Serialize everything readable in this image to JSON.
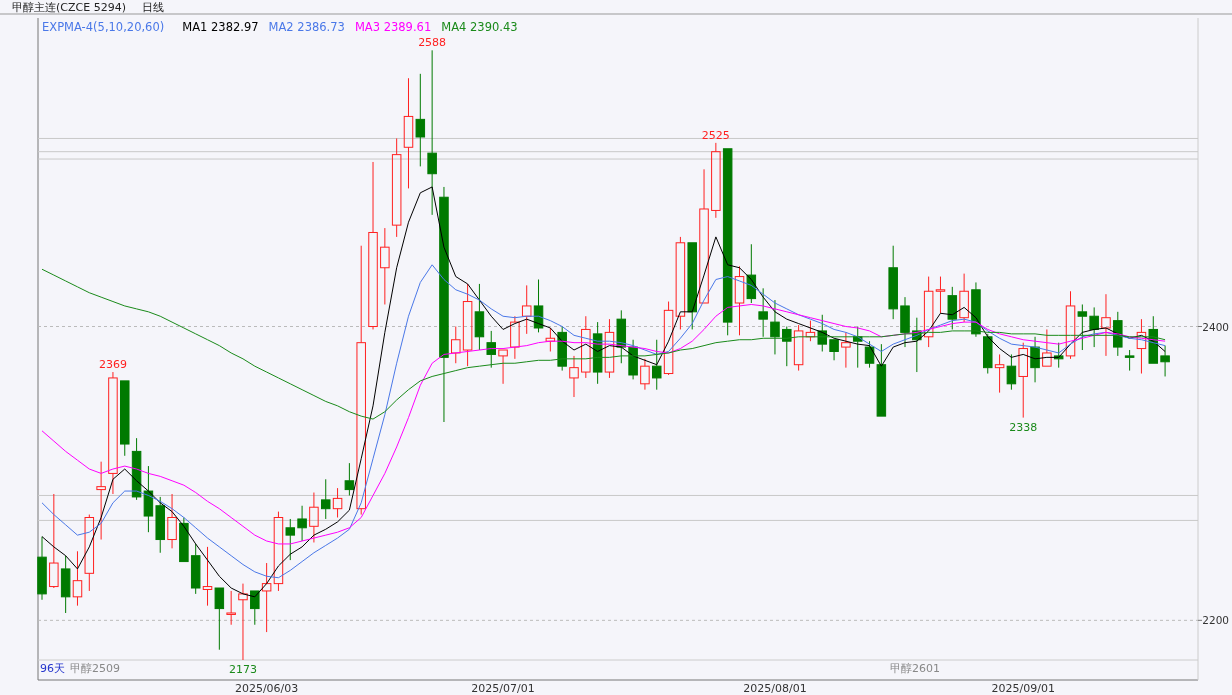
{
  "chart_data": {
    "type": "candlestick",
    "title": "甲醇主连(CZCE 5294)",
    "subtitle": "日线",
    "legend_title": "EXPMA-4(5,10,20,60)",
    "legend": "top left",
    "grid": "y",
    "ylim": [
      2173,
      2610
    ],
    "yticks": [
      2200,
      2400
    ],
    "categories": [
      null,
      null,
      null,
      null,
      null,
      null,
      null,
      null,
      null,
      null,
      null,
      null,
      null,
      null,
      null,
      null,
      null,
      null,
      null,
      "2025/06/03",
      null,
      null,
      null,
      null,
      null,
      null,
      null,
      null,
      null,
      null,
      null,
      null,
      null,
      null,
      null,
      null,
      null,
      null,
      null,
      "2025/07/01",
      null,
      null,
      null,
      null,
      null,
      null,
      null,
      null,
      null,
      null,
      null,
      null,
      null,
      null,
      null,
      null,
      null,
      null,
      null,
      null,
      null,
      null,
      "2025/08/01",
      null,
      null,
      null,
      null,
      null,
      null,
      null,
      null,
      null,
      null,
      null,
      null,
      null,
      null,
      null,
      null,
      null,
      null,
      null,
      null,
      "2025/09/01",
      null,
      null,
      null,
      null,
      null,
      null,
      null,
      null,
      null,
      null,
      null,
      null
    ],
    "series": [
      {
        "type": "line",
        "name": "MA1 2382.97",
        "color": "#000000",
        "values": [
          2257,
          2250,
          2244,
          2235,
          2250,
          2270,
          2296,
          2303,
          2295,
          2288,
          2280,
          2274,
          2264,
          2252,
          2241,
          2230,
          2222,
          2218,
          2216,
          2225,
          2237,
          2245,
          2250,
          2258,
          2262,
          2267,
          2275,
          2310,
          2346,
          2396,
          2440,
          2471,
          2491,
          2495,
          2454,
          2434,
          2429,
          2418,
          2407,
          2398,
          2402,
          2405,
          2402,
          2399,
          2390,
          2384,
          2388,
          2383,
          2387,
          2386,
          2380,
          2377,
          2374,
          2390,
          2410,
          2410,
          2435,
          2461,
          2442,
          2440,
          2432,
          2420,
          2410,
          2405,
          2402,
          2399,
          2396,
          2392,
          2390,
          2388,
          2387,
          2373,
          2386,
          2389,
          2390,
          2397,
          2409,
          2408,
          2413,
          2406,
          2393,
          2385,
          2379,
          2381,
          2378,
          2379,
          2379,
          2388,
          2396,
          2398,
          2399,
          2395,
          2392,
          2394,
          2390,
          2383
        ]
      },
      {
        "type": "line",
        "name": "MA2 2386.73",
        "color": "#4a78e8",
        "values": [
          2280,
          2272,
          2265,
          2258,
          2260,
          2266,
          2280,
          2288,
          2288,
          2285,
          2281,
          2276,
          2270,
          2263,
          2256,
          2250,
          2244,
          2238,
          2233,
          2230,
          2229,
          2234,
          2240,
          2246,
          2251,
          2256,
          2262,
          2280,
          2310,
          2340,
          2375,
          2407,
          2430,
          2442,
          2432,
          2425,
          2422,
          2418,
          2412,
          2407,
          2406,
          2407,
          2407,
          2404,
          2400,
          2394,
          2392,
          2390,
          2390,
          2389,
          2387,
          2384,
          2381,
          2383,
          2392,
          2402,
          2418,
          2432,
          2434,
          2431,
          2428,
          2422,
          2416,
          2412,
          2408,
          2405,
          2402,
          2398,
          2396,
          2393,
          2388,
          2383,
          2388,
          2391,
          2394,
          2398,
          2401,
          2404,
          2405,
          2403,
          2397,
          2392,
          2388,
          2387,
          2386,
          2384,
          2382,
          2388,
          2393,
          2395,
          2396,
          2394,
          2392,
          2391,
          2389,
          2387
        ]
      },
      {
        "type": "line",
        "name": "MA3 2389.61",
        "color": "#ff00ff",
        "values": [
          2329,
          2322,
          2315,
          2309,
          2303,
          2300,
          2303,
          2305,
          2303,
          2300,
          2298,
          2295,
          2292,
          2287,
          2281,
          2276,
          2270,
          2264,
          2258,
          2254,
          2252,
          2252,
          2254,
          2256,
          2258,
          2260,
          2263,
          2270,
          2285,
          2300,
          2318,
          2338,
          2360,
          2375,
          2381,
          2382,
          2383,
          2384,
          2385,
          2385,
          2386,
          2387,
          2389,
          2390,
          2390,
          2389,
          2389,
          2388,
          2388,
          2387,
          2386,
          2385,
          2383,
          2382,
          2385,
          2390,
          2398,
          2407,
          2413,
          2414,
          2415,
          2414,
          2412,
          2410,
          2408,
          2406,
          2404,
          2402,
          2400,
          2399,
          2397,
          2393,
          2394,
          2395,
          2396,
          2398,
          2400,
          2402,
          2403,
          2403,
          2398,
          2395,
          2393,
          2391,
          2390,
          2389,
          2388,
          2390,
          2392,
          2394,
          2396,
          2395,
          2393,
          2392,
          2391,
          2390
        ]
      },
      {
        "type": "line",
        "name": "MA4 2390.43",
        "color": "#1a8a1a",
        "values": [
          2439,
          2435,
          2431,
          2427,
          2423,
          2420,
          2417,
          2414,
          2412,
          2410,
          2407,
          2403,
          2399,
          2395,
          2391,
          2387,
          2382,
          2378,
          2373,
          2369,
          2365,
          2361,
          2357,
          2353,
          2349,
          2346,
          2342,
          2339,
          2337,
          2342,
          2350,
          2357,
          2363,
          2366,
          2368,
          2370,
          2372,
          2373,
          2374,
          2375,
          2375,
          2376,
          2377,
          2377,
          2378,
          2378,
          2378,
          2379,
          2379,
          2380,
          2380,
          2380,
          2381,
          2382,
          2384,
          2385,
          2387,
          2389,
          2390,
          2391,
          2391,
          2392,
          2392,
          2392,
          2393,
          2393,
          2393,
          2393,
          2393,
          2393,
          2393,
          2393,
          2394,
          2395,
          2395,
          2396,
          2396,
          2397,
          2397,
          2397,
          2396,
          2396,
          2395,
          2395,
          2395,
          2394,
          2394,
          2394,
          2394,
          2394,
          2394,
          2394,
          2393,
          2393,
          2393,
          2391
        ]
      },
      {
        "colors": [
          "#007a00",
          "#ff2020",
          "#007a00",
          "#ff2020",
          "#ff2020",
          "#ff2020",
          "#ff2020",
          "#007a00",
          "#007a00",
          "#007a00",
          "#007a00",
          "#ff2020",
          "#007a00",
          "#007a00",
          "#ff2020",
          "#007a00",
          "#ff2020",
          "#ff2020",
          "#007a00",
          "#ff2020",
          "#ff2020",
          "#007a00",
          "#007a00",
          "#ff2020",
          "#007a00",
          "#ff2020",
          "#007a00",
          "#ff2020",
          "#ff2020",
          "#ff2020",
          "#ff2020",
          "#ff2020",
          "#007a00",
          "#007a00",
          "#007a00",
          "#ff2020",
          "#ff2020",
          "#007a00",
          "#007a00",
          "#ff2020",
          "#ff2020",
          "#ff2020",
          "#007a00",
          "#ff2020",
          "#007a00",
          "#ff2020",
          "#ff2020",
          "#007a00",
          "#ff2020",
          "#007a00",
          "#007a00",
          "#ff2020",
          "#007a00",
          "#ff2020",
          "#ff2020",
          "#007a00",
          "#ff2020",
          "#ff2020",
          "#007a00",
          "#ff2020",
          "#007a00",
          "#007a00",
          "#007a00",
          "#007a00",
          "#ff2020",
          "#ff2020",
          "#007a00",
          "#007a00",
          "#ff2020",
          "#007a00",
          "#007a00",
          "#007a00",
          "#007a00",
          "#007a00",
          "#007a00",
          "#ff2020",
          "#ff2020",
          "#007a00",
          "#ff2020",
          "#007a00",
          "#007a00",
          "#ff2020",
          "#007a00",
          "#ff2020",
          "#007a00",
          "#ff2020",
          "#007a00",
          "#ff2020",
          "#007a00",
          "#007a00",
          "#ff2020",
          "#007a00",
          "#007a00",
          "#ff2020",
          "#007a00",
          "#007a00"
        ],
        "ohlc": [
          [
            2243,
            2257,
            2214,
            2218
          ],
          [
            2223,
            2286,
            2222,
            2239
          ],
          [
            2235,
            2244,
            2205,
            2216
          ],
          [
            2216,
            2247,
            2210,
            2227
          ],
          [
            2232,
            2272,
            2220,
            2270
          ],
          [
            2289,
            2308,
            2255,
            2291
          ],
          [
            2300,
            2369,
            2286,
            2365
          ],
          [
            2363,
            2363,
            2312,
            2320
          ],
          [
            2315,
            2324,
            2282,
            2284
          ],
          [
            2288,
            2305,
            2260,
            2271
          ],
          [
            2278,
            2284,
            2246,
            2255
          ],
          [
            2255,
            2286,
            2249,
            2270
          ],
          [
            2266,
            2270,
            2240,
            2240
          ],
          [
            2244,
            2252,
            2218,
            2222
          ],
          [
            2221,
            2250,
            2210,
            2223
          ],
          [
            2222,
            2222,
            2180,
            2208
          ],
          [
            2204,
            2220,
            2197,
            2205
          ],
          [
            2214,
            2225,
            2173,
            2218
          ],
          [
            2220,
            2220,
            2197,
            2208
          ],
          [
            2220,
            2239,
            2192,
            2225
          ],
          [
            2225,
            2274,
            2220,
            2270
          ],
          [
            2263,
            2269,
            2241,
            2258
          ],
          [
            2269,
            2278,
            2254,
            2263
          ],
          [
            2264,
            2287,
            2253,
            2277
          ],
          [
            2282,
            2296,
            2269,
            2276
          ],
          [
            2276,
            2290,
            2270,
            2283
          ],
          [
            2295,
            2307,
            2285,
            2289
          ],
          [
            2276,
            2455,
            2272,
            2389
          ],
          [
            2400,
            2512,
            2398,
            2464
          ],
          [
            2440,
            2467,
            2415,
            2454
          ],
          [
            2469,
            2528,
            2461,
            2517
          ],
          [
            2522,
            2569,
            2494,
            2543
          ],
          [
            2541,
            2572,
            2509,
            2529
          ],
          [
            2518,
            2588,
            2476,
            2504
          ],
          [
            2488,
            2495,
            2335,
            2379
          ],
          [
            2382,
            2400,
            2375,
            2391
          ],
          [
            2384,
            2429,
            2373,
            2417
          ],
          [
            2410,
            2429,
            2384,
            2393
          ],
          [
            2389,
            2397,
            2372,
            2381
          ],
          [
            2380,
            2384,
            2361,
            2384
          ],
          [
            2386,
            2407,
            2378,
            2403
          ],
          [
            2407,
            2428,
            2395,
            2414
          ],
          [
            2414,
            2432,
            2396,
            2399
          ],
          [
            2390,
            2399,
            2383,
            2392
          ],
          [
            2396,
            2400,
            2370,
            2373
          ],
          [
            2365,
            2380,
            2352,
            2372
          ],
          [
            2369,
            2407,
            2365,
            2398
          ],
          [
            2395,
            2403,
            2361,
            2369
          ],
          [
            2369,
            2405,
            2365,
            2396
          ],
          [
            2405,
            2411,
            2375,
            2386
          ],
          [
            2386,
            2391,
            2364,
            2367
          ],
          [
            2361,
            2378,
            2357,
            2373
          ],
          [
            2373,
            2391,
            2357,
            2365
          ],
          [
            2368,
            2417,
            2367,
            2411
          ],
          [
            2407,
            2461,
            2398,
            2457
          ],
          [
            2457,
            2457,
            2398,
            2410
          ],
          [
            2416,
            2507,
            2416,
            2480
          ],
          [
            2479,
            2525,
            2474,
            2519
          ],
          [
            2521,
            2521,
            2394,
            2403
          ],
          [
            2416,
            2441,
            2394,
            2434
          ],
          [
            2435,
            2456,
            2416,
            2419
          ],
          [
            2410,
            2426,
            2393,
            2405
          ],
          [
            2403,
            2418,
            2381,
            2393
          ],
          [
            2398,
            2400,
            2373,
            2390
          ],
          [
            2374,
            2401,
            2370,
            2397
          ],
          [
            2393,
            2404,
            2390,
            2396
          ],
          [
            2397,
            2408,
            2383,
            2388
          ],
          [
            2391,
            2391,
            2377,
            2383
          ],
          [
            2386,
            2396,
            2372,
            2389
          ],
          [
            2393,
            2400,
            2372,
            2390
          ],
          [
            2386,
            2390,
            2372,
            2375
          ],
          [
            2374,
            2388,
            2339,
            2339
          ],
          [
            2440,
            2455,
            2405,
            2412
          ],
          [
            2414,
            2420,
            2386,
            2396
          ],
          [
            2397,
            2406,
            2369,
            2391
          ],
          [
            2393,
            2434,
            2386,
            2424
          ],
          [
            2424,
            2434,
            2409,
            2425
          ],
          [
            2421,
            2427,
            2398,
            2405
          ],
          [
            2406,
            2436,
            2403,
            2424
          ],
          [
            2425,
            2430,
            2393,
            2395
          ],
          [
            2393,
            2395,
            2368,
            2372
          ],
          [
            2372,
            2381,
            2355,
            2374
          ],
          [
            2373,
            2381,
            2357,
            2361
          ],
          [
            2366,
            2389,
            2338,
            2385
          ],
          [
            2386,
            2393,
            2362,
            2372
          ],
          [
            2373,
            2398,
            2373,
            2382
          ],
          [
            2380,
            2389,
            2372,
            2378
          ],
          [
            2380,
            2424,
            2378,
            2414
          ],
          [
            2410,
            2415,
            2384,
            2407
          ],
          [
            2407,
            2413,
            2386,
            2398
          ],
          [
            2399,
            2422,
            2380,
            2406
          ],
          [
            2404,
            2410,
            2380,
            2386
          ],
          [
            2380,
            2384,
            2370,
            2379
          ],
          [
            2385,
            2405,
            2368,
            2396
          ],
          [
            2398,
            2407,
            2375,
            2375
          ],
          [
            2380,
            2387,
            2366,
            2376
          ]
        ]
      }
    ],
    "ref_lines": [
      {
        "axis": "y",
        "value": 2528,
        "color": "#c8c8c8"
      },
      {
        "axis": "y",
        "value": 2519,
        "color": "#c8c8c8"
      },
      {
        "axis": "y",
        "value": 2514,
        "color": "#c8c8c8"
      },
      {
        "axis": "y",
        "value": 2285,
        "color": "#c8c8c8"
      },
      {
        "axis": "y",
        "value": 2268,
        "color": "#c8c8c8"
      }
    ],
    "annotations": [
      {
        "text": "2588",
        "y": 2588
      },
      {
        "text": "2369",
        "y": 2369
      },
      {
        "text": "2525",
        "y": 2525
      },
      {
        "text": "2173",
        "y": 2173
      },
      {
        "text": "2338",
        "y": 2338
      },
      "96天",
      "甲醇2509",
      "甲醇2601"
    ]
  }
}
